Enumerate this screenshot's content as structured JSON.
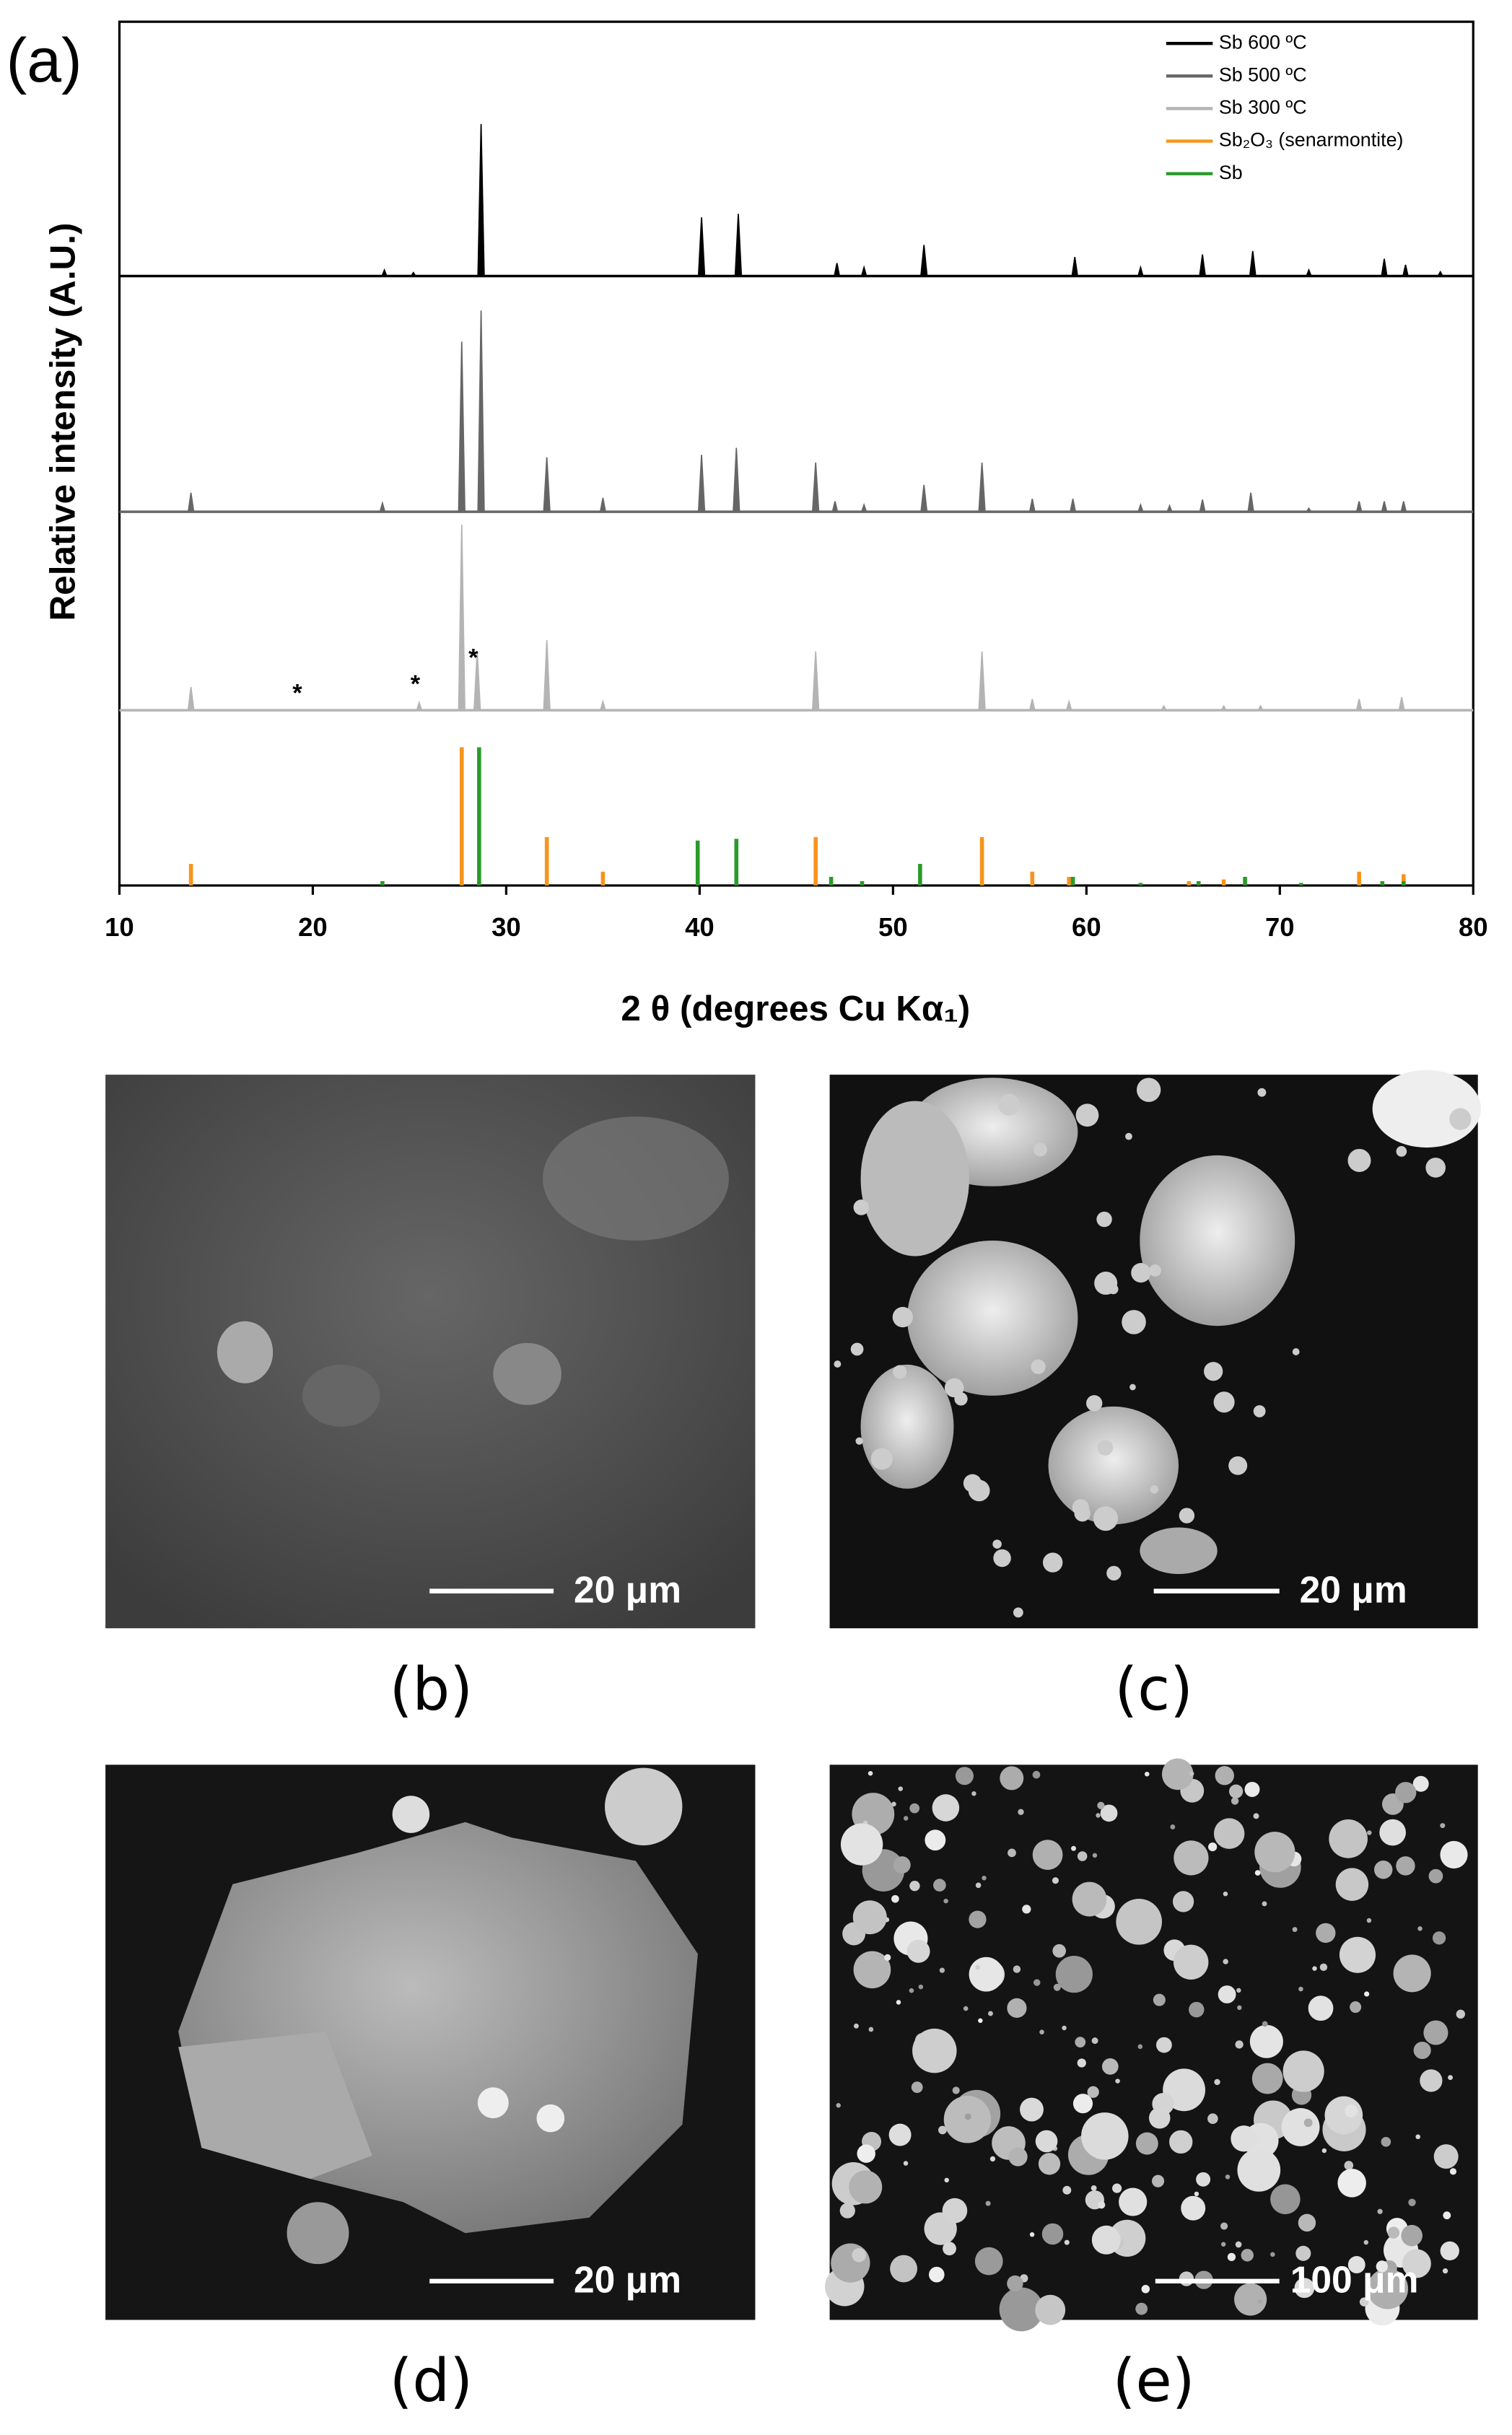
{
  "figure_label": "(a)",
  "chart_data": {
    "type": "line",
    "title": null,
    "x_label": "2 θ (degrees Cu Kα₁)",
    "y_label": "Relative intensity (A.U.)",
    "xlim": [
      10,
      80
    ],
    "xticks": [
      10,
      20,
      30,
      40,
      50,
      60,
      70,
      80
    ],
    "ylim": [
      0,
      100
    ],
    "legend": "upper right",
    "series": [
      {
        "name": "Sb 600 ºC",
        "color": "#000000",
        "type": "line",
        "x": [
          23.7,
          25.2,
          28.7,
          40.1,
          42.0,
          47.1,
          48.5,
          51.6,
          59.4,
          62.8,
          66.0,
          68.6,
          71.5,
          75.4,
          76.5,
          78.3
        ],
        "values": [
          0.7,
          0.4,
          17.6,
          6.8,
          7.2,
          1.5,
          1.0,
          3.6,
          2.2,
          1.0,
          2.5,
          2.9,
          0.7,
          2.0,
          1.3,
          0.5
        ]
      },
      {
        "name": "Sb 500 ºC",
        "color": "#666666",
        "type": "line",
        "x": [
          13.7,
          23.6,
          27.7,
          28.7,
          32.1,
          35.0,
          40.1,
          41.9,
          46.0,
          47.0,
          48.5,
          51.6,
          54.6,
          57.2,
          59.3,
          62.8,
          64.3,
          66.0,
          68.5,
          71.5,
          74.1,
          75.4,
          76.4
        ],
        "values": [
          2.2,
          1.0,
          19.7,
          23.3,
          6.3,
          1.6,
          6.6,
          7.4,
          5.7,
          1.2,
          0.8,
          3.1,
          5.7,
          1.5,
          1.5,
          0.8,
          0.7,
          1.4,
          2.2,
          0.4,
          1.2,
          1.2,
          1.2
        ]
      },
      {
        "name": "Sb 300 ºC",
        "color": "#b4b4b4",
        "type": "line",
        "x": [
          13.7,
          25.5,
          27.7,
          28.5,
          32.1,
          35.0,
          46.0,
          54.6,
          57.2,
          59.1,
          64.0,
          67.1,
          69.0,
          74.1,
          76.3
        ],
        "values": [
          2.7,
          0.9,
          21.5,
          6.8,
          8.1,
          1.0,
          6.8,
          6.8,
          1.3,
          1.0,
          0.5,
          0.5,
          0.5,
          1.3,
          1.5
        ]
      },
      {
        "name": "Sb₂O₃ (senarmontite)",
        "color": "#f7941d",
        "type": "bar",
        "x": [
          13.7,
          27.7,
          32.1,
          35.0,
          46.0,
          54.6,
          57.2,
          59.1,
          65.3,
          67.1,
          74.1,
          76.4
        ],
        "values": [
          2.5,
          16,
          5.6,
          1.6,
          5.6,
          5.6,
          1.6,
          1.0,
          0.5,
          0.7,
          1.6,
          1.3
        ]
      },
      {
        "name": "Sb",
        "color": "#2a9a2a",
        "type": "bar",
        "x": [
          23.6,
          28.6,
          39.9,
          41.9,
          46.8,
          48.4,
          51.4,
          59.3,
          62.8,
          65.8,
          68.2,
          71.1,
          75.3,
          76.4
        ],
        "values": [
          0.5,
          16,
          5.2,
          5.4,
          1.0,
          0.5,
          2.5,
          1.0,
          0.3,
          0.5,
          1.0,
          0.3,
          0.5,
          0.5
        ]
      }
    ],
    "annotations": [
      {
        "text": "*",
        "x": 19.2
      },
      {
        "text": "*",
        "x": 25.3
      },
      {
        "text": "*",
        "x": 28.3
      }
    ]
  },
  "panels": [
    {
      "label": "(b)",
      "scale_bar": "20 μm"
    },
    {
      "label": "(c)",
      "scale_bar": "20 μm"
    },
    {
      "label": "(d)",
      "scale_bar": "20 μm"
    },
    {
      "label": "(e)",
      "scale_bar": "100 μm"
    }
  ]
}
